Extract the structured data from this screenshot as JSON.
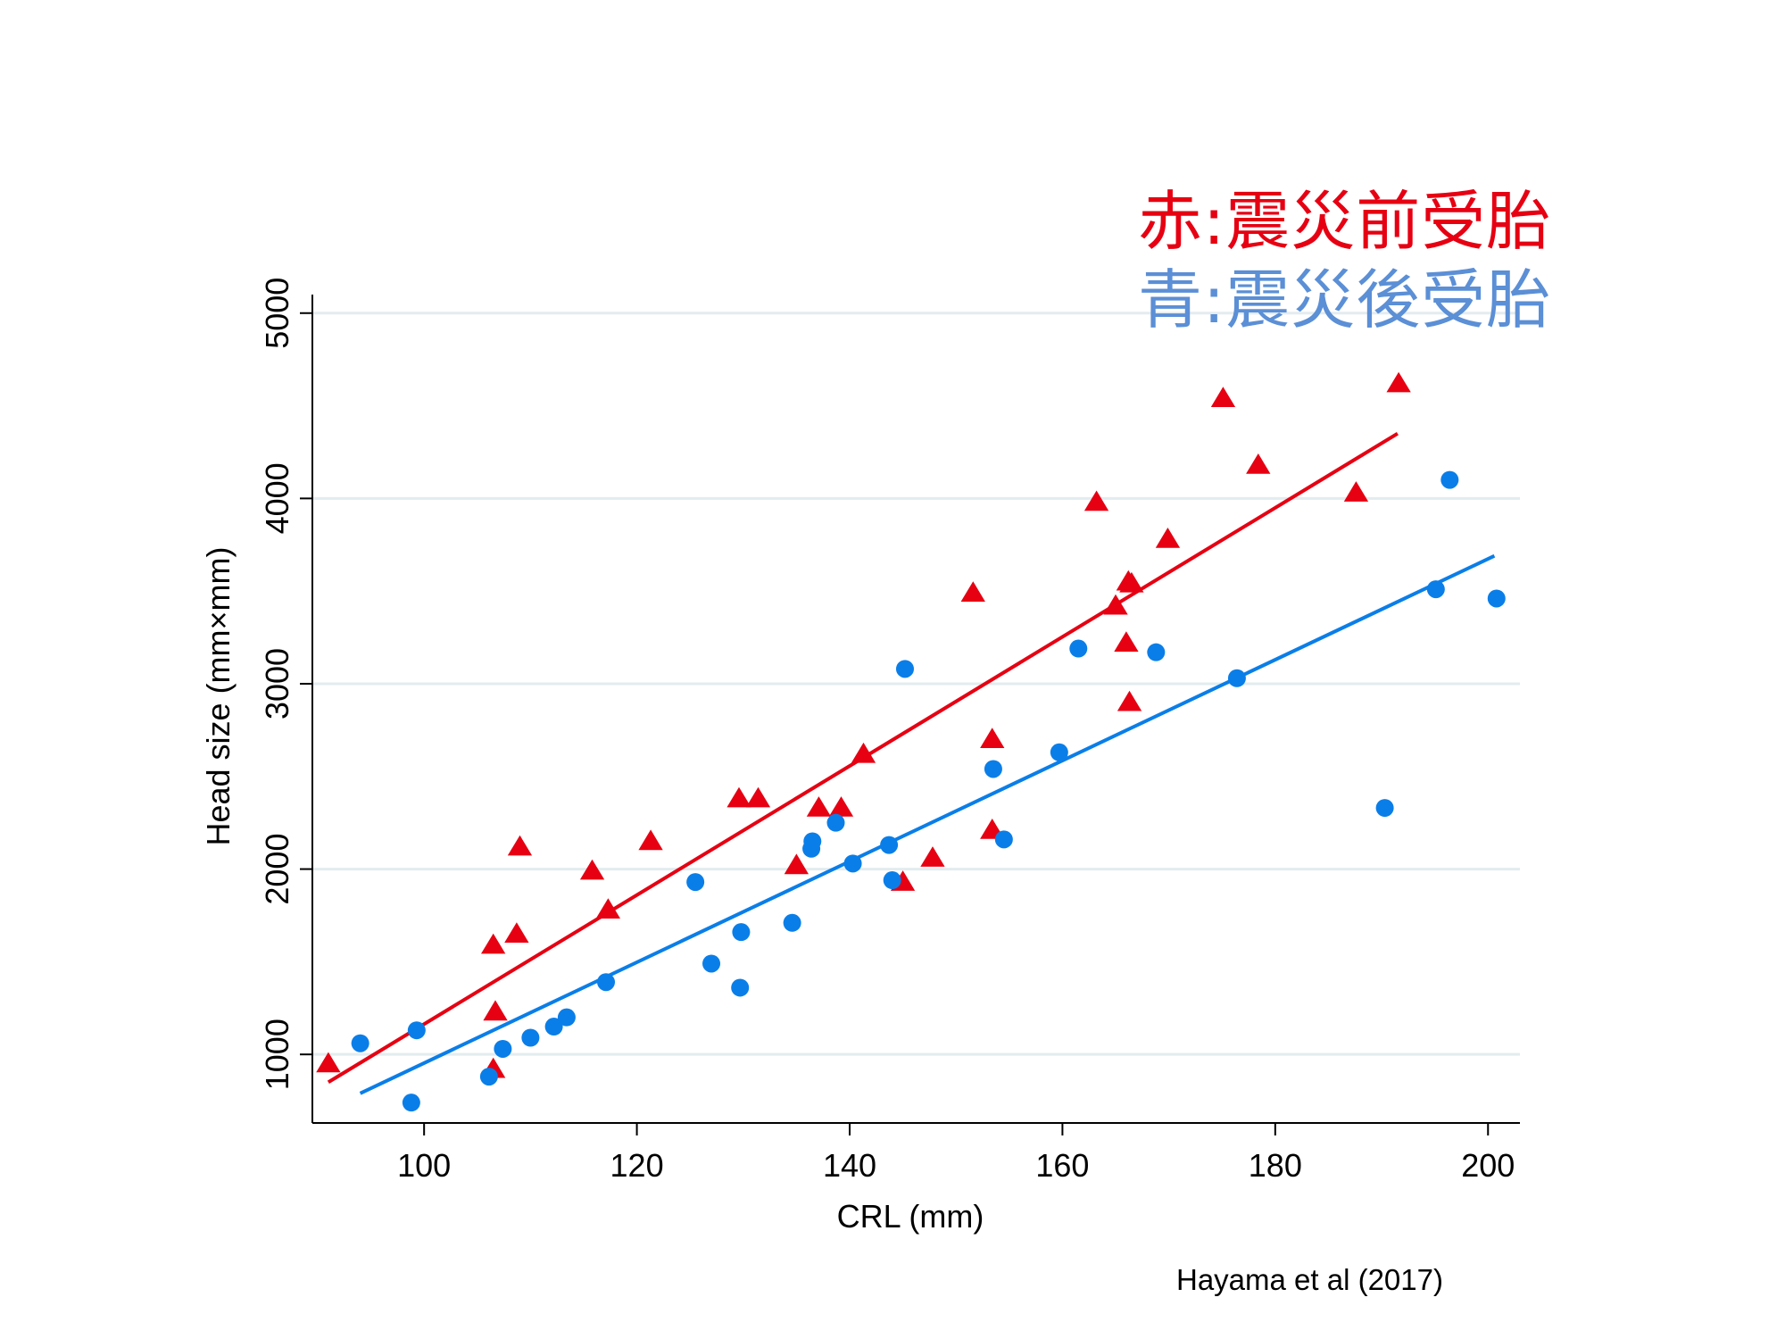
{
  "legend": {
    "red": {
      "label": "赤:震災前受胎",
      "color": "#e60012"
    },
    "blue": {
      "label": "青:震災後受胎",
      "color": "#5b8fd6"
    }
  },
  "citation": "Hayama et al (2017)",
  "chart_data": {
    "type": "scatter",
    "xlabel": "CRL (mm)",
    "ylabel": "Head size (mm×mm)",
    "xlim": [
      89.5,
      203
    ],
    "ylim": [
      630,
      5100
    ],
    "xticks": [
      100,
      120,
      140,
      160,
      180,
      200
    ],
    "yticks": [
      1000,
      2000,
      3000,
      4000,
      5000
    ],
    "grid": "horizontal",
    "series": [
      {
        "name": "赤:震災前受胎",
        "marker": "triangle",
        "color": "#e60012",
        "points": [
          [
            91,
            950
          ],
          [
            106.5,
            1590
          ],
          [
            106.7,
            1230
          ],
          [
            106.5,
            920
          ],
          [
            108.7,
            1650
          ],
          [
            109,
            2120
          ],
          [
            115.8,
            1990
          ],
          [
            117.3,
            1780
          ],
          [
            121.3,
            2150
          ],
          [
            129.6,
            2380
          ],
          [
            131.4,
            2380
          ],
          [
            135,
            2020
          ],
          [
            137.1,
            2330
          ],
          [
            139.2,
            2330
          ],
          [
            141.3,
            2620
          ],
          [
            145,
            1930
          ],
          [
            147.8,
            2060
          ],
          [
            151.6,
            3490
          ],
          [
            153.4,
            2700
          ],
          [
            153.4,
            2210
          ],
          [
            163.2,
            3980
          ],
          [
            165,
            3420
          ],
          [
            166,
            3220
          ],
          [
            166.2,
            3550
          ],
          [
            166.3,
            2900
          ],
          [
            166.5,
            3540
          ],
          [
            169.9,
            3780
          ],
          [
            175.1,
            4540
          ],
          [
            178.4,
            4180
          ],
          [
            187.6,
            4030
          ],
          [
            191.6,
            4620
          ]
        ],
        "fit": {
          "x": [
            91,
            191.5
          ],
          "y": [
            850,
            4350
          ]
        }
      },
      {
        "name": "青:震災後受胎",
        "marker": "circle",
        "color": "#0a7ee8",
        "points": [
          [
            94,
            1060
          ],
          [
            98.8,
            740
          ],
          [
            99.3,
            1130
          ],
          [
            106.1,
            880
          ],
          [
            107.4,
            1030
          ],
          [
            110,
            1090
          ],
          [
            112.2,
            1150
          ],
          [
            113.4,
            1200
          ],
          [
            117.1,
            1390
          ],
          [
            125.5,
            1930
          ],
          [
            127,
            1490
          ],
          [
            129.7,
            1360
          ],
          [
            129.8,
            1660
          ],
          [
            134.6,
            1710
          ],
          [
            136.4,
            2110
          ],
          [
            136.5,
            2150
          ],
          [
            138.7,
            2250
          ],
          [
            140.3,
            2030
          ],
          [
            143.7,
            2130
          ],
          [
            144,
            1940
          ],
          [
            145.2,
            3080
          ],
          [
            153.5,
            2540
          ],
          [
            154.5,
            2160
          ],
          [
            159.7,
            2630
          ],
          [
            161.5,
            3190
          ],
          [
            168.8,
            3170
          ],
          [
            176.4,
            3030
          ],
          [
            190.3,
            2330
          ],
          [
            195.1,
            3510
          ],
          [
            196.4,
            4100
          ],
          [
            200.8,
            3460
          ]
        ],
        "fit": {
          "x": [
            94,
            200.6
          ],
          "y": [
            790,
            3690
          ]
        }
      }
    ]
  }
}
